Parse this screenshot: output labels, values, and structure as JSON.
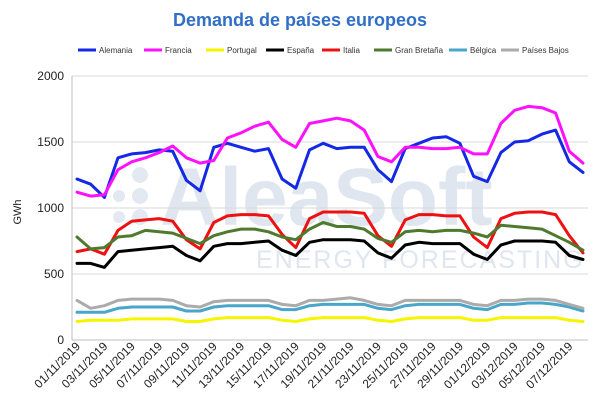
{
  "chart_data": {
    "type": "line",
    "title": "Demanda de países europeos",
    "xlabel": "",
    "ylabel": "GWh",
    "ylim": [
      0,
      2000
    ],
    "yticks": [
      0,
      500,
      1000,
      1500,
      2000
    ],
    "grid": true,
    "legend_position": "top",
    "watermark": [
      "AleaSoft",
      "ENERGY FORECASTING"
    ],
    "x": [
      "01/11/2019",
      "02/11/2019",
      "03/11/2019",
      "04/11/2019",
      "05/11/2019",
      "06/11/2019",
      "07/11/2019",
      "08/11/2019",
      "09/11/2019",
      "10/11/2019",
      "11/11/2019",
      "12/11/2019",
      "13/11/2019",
      "14/11/2019",
      "15/11/2019",
      "16/11/2019",
      "17/11/2019",
      "18/11/2019",
      "19/11/2019",
      "20/11/2019",
      "21/11/2019",
      "22/11/2019",
      "23/11/2019",
      "24/11/2019",
      "25/11/2019",
      "26/11/2019",
      "27/11/2019",
      "28/11/2019",
      "29/11/2019",
      "30/11/2019",
      "01/12/2019",
      "02/12/2019",
      "03/12/2019",
      "04/12/2019",
      "05/12/2019",
      "06/12/2019",
      "07/12/2019",
      "08/12/2019"
    ],
    "xtick_labels": [
      "01/11/2019",
      "03/11/2019",
      "05/11/2019",
      "07/11/2019",
      "09/11/2019",
      "11/11/2019",
      "13/11/2019",
      "15/11/2019",
      "17/11/2019",
      "19/11/2019",
      "21/11/2019",
      "23/11/2019",
      "25/11/2019",
      "27/11/2019",
      "29/11/2019",
      "01/12/2019",
      "03/12/2019",
      "05/12/2019",
      "07/12/2019"
    ],
    "series": [
      {
        "name": "Alemania",
        "color": "#1428e6",
        "values": [
          1220,
          1180,
          1080,
          1380,
          1410,
          1420,
          1440,
          1430,
          1210,
          1130,
          1460,
          1490,
          1460,
          1430,
          1450,
          1220,
          1150,
          1440,
          1490,
          1450,
          1460,
          1460,
          1290,
          1200,
          1450,
          1490,
          1530,
          1540,
          1490,
          1240,
          1200,
          1420,
          1500,
          1510,
          1560,
          1590,
          1350,
          1270
        ]
      },
      {
        "name": "Francia",
        "color": "#ff10ff",
        "values": [
          1120,
          1090,
          1100,
          1290,
          1350,
          1380,
          1420,
          1470,
          1380,
          1340,
          1360,
          1530,
          1570,
          1620,
          1650,
          1520,
          1460,
          1640,
          1660,
          1680,
          1660,
          1590,
          1390,
          1350,
          1460,
          1460,
          1450,
          1450,
          1460,
          1410,
          1410,
          1640,
          1740,
          1770,
          1760,
          1720,
          1430,
          1340
        ]
      },
      {
        "name": "Portugal",
        "color": "#f5f500",
        "values": [
          140,
          150,
          150,
          150,
          160,
          160,
          160,
          160,
          140,
          140,
          160,
          170,
          170,
          170,
          170,
          150,
          140,
          160,
          170,
          170,
          170,
          170,
          150,
          140,
          160,
          170,
          170,
          170,
          170,
          150,
          150,
          170,
          170,
          170,
          170,
          170,
          150,
          140
        ]
      },
      {
        "name": "España",
        "color": "#000000",
        "values": [
          580,
          580,
          550,
          670,
          680,
          690,
          700,
          710,
          640,
          600,
          710,
          730,
          730,
          740,
          750,
          680,
          640,
          740,
          760,
          760,
          760,
          750,
          660,
          620,
          720,
          740,
          730,
          730,
          730,
          650,
          610,
          720,
          750,
          750,
          750,
          740,
          640,
          610
        ]
      },
      {
        "name": "Italia",
        "color": "#ee1111",
        "values": [
          670,
          690,
          650,
          830,
          900,
          910,
          920,
          900,
          760,
          690,
          890,
          940,
          950,
          950,
          940,
          800,
          700,
          920,
          970,
          970,
          970,
          960,
          790,
          710,
          910,
          950,
          950,
          940,
          940,
          780,
          700,
          920,
          960,
          970,
          970,
          950,
          790,
          660
        ]
      },
      {
        "name": "Gran Bretaña",
        "color": "#4e7a2e",
        "values": [
          780,
          690,
          700,
          780,
          790,
          830,
          820,
          810,
          770,
          730,
          790,
          820,
          840,
          840,
          820,
          780,
          760,
          840,
          890,
          860,
          860,
          840,
          770,
          740,
          820,
          830,
          820,
          830,
          830,
          810,
          780,
          870,
          860,
          850,
          840,
          790,
          740,
          680
        ]
      },
      {
        "name": "Bélgica",
        "color": "#4aa6c8",
        "values": [
          210,
          210,
          210,
          240,
          250,
          250,
          250,
          250,
          220,
          220,
          250,
          260,
          260,
          260,
          260,
          230,
          230,
          260,
          270,
          270,
          270,
          270,
          240,
          230,
          260,
          270,
          270,
          270,
          270,
          240,
          230,
          270,
          270,
          280,
          280,
          270,
          250,
          220
        ]
      },
      {
        "name": "Países Bajos",
        "color": "#ababab",
        "values": [
          300,
          240,
          260,
          300,
          310,
          310,
          310,
          300,
          260,
          250,
          290,
          300,
          300,
          300,
          300,
          270,
          260,
          300,
          300,
          310,
          320,
          300,
          270,
          260,
          300,
          300,
          300,
          300,
          300,
          270,
          260,
          300,
          300,
          310,
          310,
          300,
          270,
          240
        ]
      }
    ]
  }
}
